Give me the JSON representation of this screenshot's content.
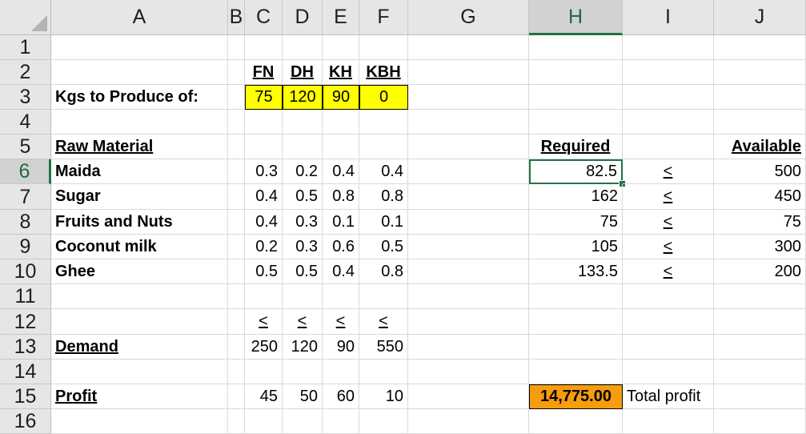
{
  "columns": [
    "A",
    "B",
    "C",
    "D",
    "E",
    "F",
    "G",
    "H",
    "I",
    "J"
  ],
  "rows": [
    "1",
    "2",
    "3",
    "4",
    "5",
    "6",
    "7",
    "8",
    "9",
    "10",
    "11",
    "12",
    "13",
    "14",
    "15",
    "16"
  ],
  "selected_column": "H",
  "selected_row": "6",
  "cells": {
    "C2": "FN",
    "D2": "DH",
    "E2": "KH",
    "F2": "KBH",
    "A3": "Kgs to Produce of:",
    "C3": "75",
    "D3": "120",
    "E3": "90",
    "F3": "0",
    "A5": "Raw Material",
    "H5": "Required",
    "J5": "Available",
    "A6": "Maida",
    "C6": "0.3",
    "D6": "0.2",
    "E6": "0.4",
    "F6": "0.4",
    "H6": "82.5",
    "I6": "<",
    "J6": "500",
    "A7": "Sugar",
    "C7": "0.4",
    "D7": "0.5",
    "E7": "0.8",
    "F7": "0.8",
    "H7": "162",
    "I7": "<",
    "J7": "450",
    "A8": "Fruits and Nuts",
    "C8": "0.4",
    "D8": "0.3",
    "E8": "0.1",
    "F8": "0.1",
    "H8": "75",
    "I8": "<",
    "J8": "75",
    "A9": "Coconut milk",
    "C9": "0.2",
    "D9": "0.3",
    "E9": "0.6",
    "F9": "0.5",
    "H9": "105",
    "I9": "<",
    "J9": "300",
    "A10": "Ghee",
    "C10": "0.5",
    "D10": "0.5",
    "E10": "0.4",
    "F10": "0.8",
    "H10": "133.5",
    "I10": "<",
    "J10": "200",
    "C12": "<",
    "D12": "<",
    "E12": "<",
    "F12": "<",
    "A13": "Demand",
    "C13": "250",
    "D13": "120",
    "E13": "90",
    "F13": "550",
    "A15": "Profit",
    "C15": "45",
    "D15": "50",
    "E15": "60",
    "F15": "10",
    "H15": "14,775.00",
    "I15": "Total profit"
  },
  "colors": {
    "input_fill": "#ffff00",
    "result_fill": "#f59d0e",
    "selection": "#217346"
  }
}
